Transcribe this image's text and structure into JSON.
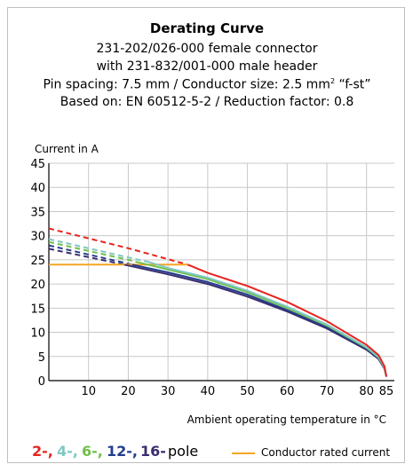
{
  "header": {
    "title": "Derating Curve",
    "line1": "231-202/026-000 female connector",
    "line2": "with 231-832/001-000 male header",
    "line3_prefix": "Pin spacing: 7.5 mm / Conductor size: 2.5 mm",
    "line3_sup": "2",
    "line3_suffix": " “f-st”",
    "line4": "Based on: EN 60512-5-2 / Reduction factor: 0.8"
  },
  "chart_data": {
    "type": "line",
    "xlabel": "Ambient operating temperature in °C",
    "ylabel": "Current in A",
    "xlim": [
      0,
      87
    ],
    "ylim": [
      0,
      45
    ],
    "x_ticks": [
      "10",
      "20",
      "30",
      "40",
      "50",
      "60",
      "70",
      "80",
      "85"
    ],
    "x_tick_values": [
      10,
      20,
      30,
      40,
      50,
      60,
      70,
      80,
      85
    ],
    "y_ticks": [
      "0",
      "5",
      "10",
      "15",
      "20",
      "25",
      "30",
      "35",
      "40",
      "45"
    ],
    "y_tick_values": [
      0,
      5,
      10,
      15,
      20,
      25,
      30,
      35,
      40,
      45
    ],
    "grid": true,
    "series": [
      {
        "name": "2-",
        "color": "#e8231f",
        "dashed": [
          [
            0,
            31.5
          ],
          [
            20,
            27.4
          ],
          [
            35,
            24.0
          ]
        ],
        "values": [
          [
            35,
            24.0
          ],
          [
            40,
            22.3
          ],
          [
            50,
            19.6
          ],
          [
            60,
            16.3
          ],
          [
            70,
            12.3
          ],
          [
            80,
            7.4
          ],
          [
            83,
            5.3
          ],
          [
            84.5,
            3.0
          ],
          [
            85,
            0.8
          ]
        ]
      },
      {
        "name": "4-",
        "color": "#7fc7c3",
        "dashed": [
          [
            0,
            29.3
          ],
          [
            20,
            25.5
          ],
          [
            25,
            24.6
          ]
        ],
        "values": [
          [
            25,
            24.6
          ],
          [
            30,
            23.3
          ],
          [
            40,
            21.3
          ],
          [
            50,
            18.6
          ],
          [
            60,
            15.3
          ],
          [
            70,
            11.6
          ],
          [
            80,
            6.9
          ],
          [
            83,
            4.9
          ],
          [
            84.5,
            2.8
          ],
          [
            85,
            0.8
          ]
        ]
      },
      {
        "name": "6-",
        "color": "#6fc04a",
        "dashed": [
          [
            0,
            28.7
          ],
          [
            20,
            25.0
          ],
          [
            23,
            24.4
          ]
        ],
        "values": [
          [
            23,
            24.4
          ],
          [
            30,
            23.0
          ],
          [
            40,
            21.0
          ],
          [
            50,
            18.3
          ],
          [
            60,
            15.0
          ],
          [
            70,
            11.4
          ],
          [
            80,
            6.8
          ],
          [
            83,
            4.8
          ],
          [
            84.5,
            2.7
          ],
          [
            85,
            0.8
          ]
        ]
      },
      {
        "name": "12-",
        "color": "#233c8e",
        "dashed": [
          [
            0,
            28.0
          ],
          [
            20,
            24.2
          ],
          [
            21,
            24.0
          ]
        ],
        "values": [
          [
            21,
            24.0
          ],
          [
            30,
            22.4
          ],
          [
            40,
            20.4
          ],
          [
            50,
            17.8
          ],
          [
            60,
            14.6
          ],
          [
            70,
            11.1
          ],
          [
            80,
            6.6
          ],
          [
            83,
            4.7
          ],
          [
            84.5,
            2.6
          ],
          [
            85,
            0.8
          ]
        ]
      },
      {
        "name": "16-",
        "color": "#3a2d6e",
        "dashed": [
          [
            0,
            27.3
          ],
          [
            19,
            24.0
          ]
        ],
        "values": [
          [
            19,
            24.0
          ],
          [
            30,
            22.0
          ],
          [
            40,
            20.0
          ],
          [
            50,
            17.4
          ],
          [
            60,
            14.3
          ],
          [
            70,
            10.8
          ],
          [
            80,
            6.4
          ],
          [
            83,
            4.5
          ],
          [
            84.5,
            2.5
          ],
          [
            85,
            0.8
          ]
        ]
      },
      {
        "name": "Conductor rated current",
        "color": "#f5a623",
        "values": [
          [
            0,
            24.0
          ],
          [
            35,
            24.0
          ]
        ]
      }
    ]
  },
  "legend": {
    "items": [
      {
        "label": "2-,",
        "color": "#e8231f"
      },
      {
        "label": "4-,",
        "color": "#7fc7c3"
      },
      {
        "label": "6-,",
        "color": "#6fc04a"
      },
      {
        "label": "12-,",
        "color": "#233c8e"
      },
      {
        "label": "16-",
        "color": "#3a2d6e"
      }
    ],
    "suffix": "pole",
    "rated_label": "Conductor rated current"
  }
}
